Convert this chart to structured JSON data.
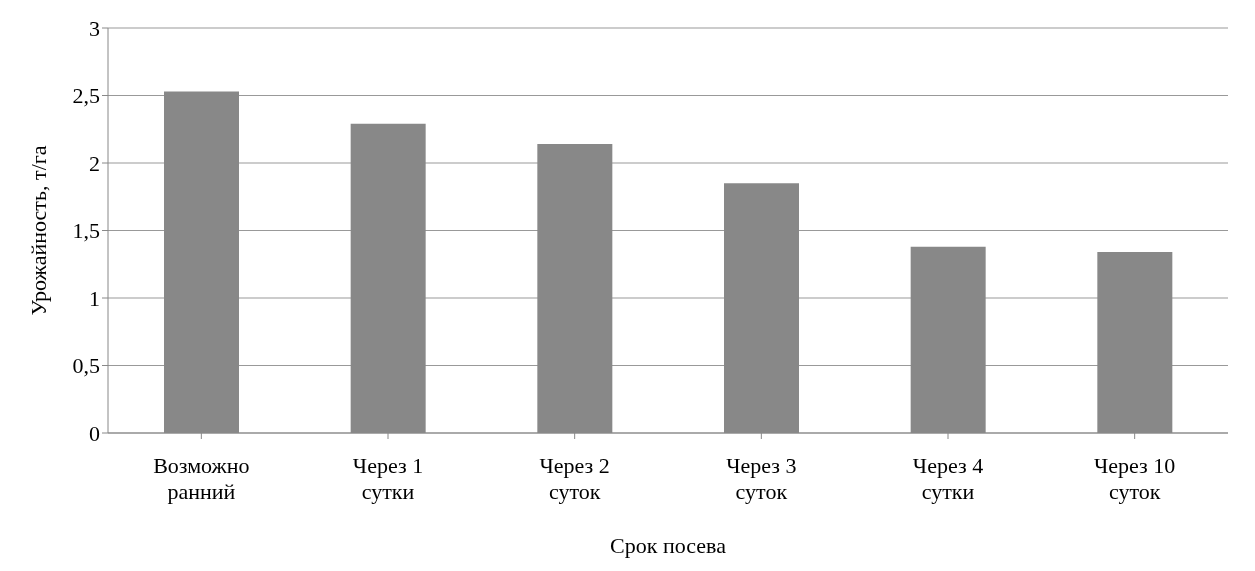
{
  "chart_data": {
    "type": "bar",
    "xlabel": "Срок посева",
    "ylabel": "Урожайность, т/га",
    "categories": [
      "Возможно\nранний",
      "Через 1\nсутки",
      "Через 2\nсуток",
      "Через 3\nсуток",
      "Через 4\nсутки",
      "Через 10\nсуток"
    ],
    "values": [
      2.53,
      2.29,
      2.14,
      1.85,
      1.38,
      1.34
    ],
    "color": "#888888",
    "ylim": [
      0,
      3
    ],
    "yticks": [
      0,
      {
        "value": 0.5,
        "label": "0,5"
      },
      1,
      {
        "value": 1.5,
        "label": "1,5"
      },
      2,
      {
        "value": 2.5,
        "label": "2,5"
      },
      3
    ],
    "grid": "y"
  }
}
